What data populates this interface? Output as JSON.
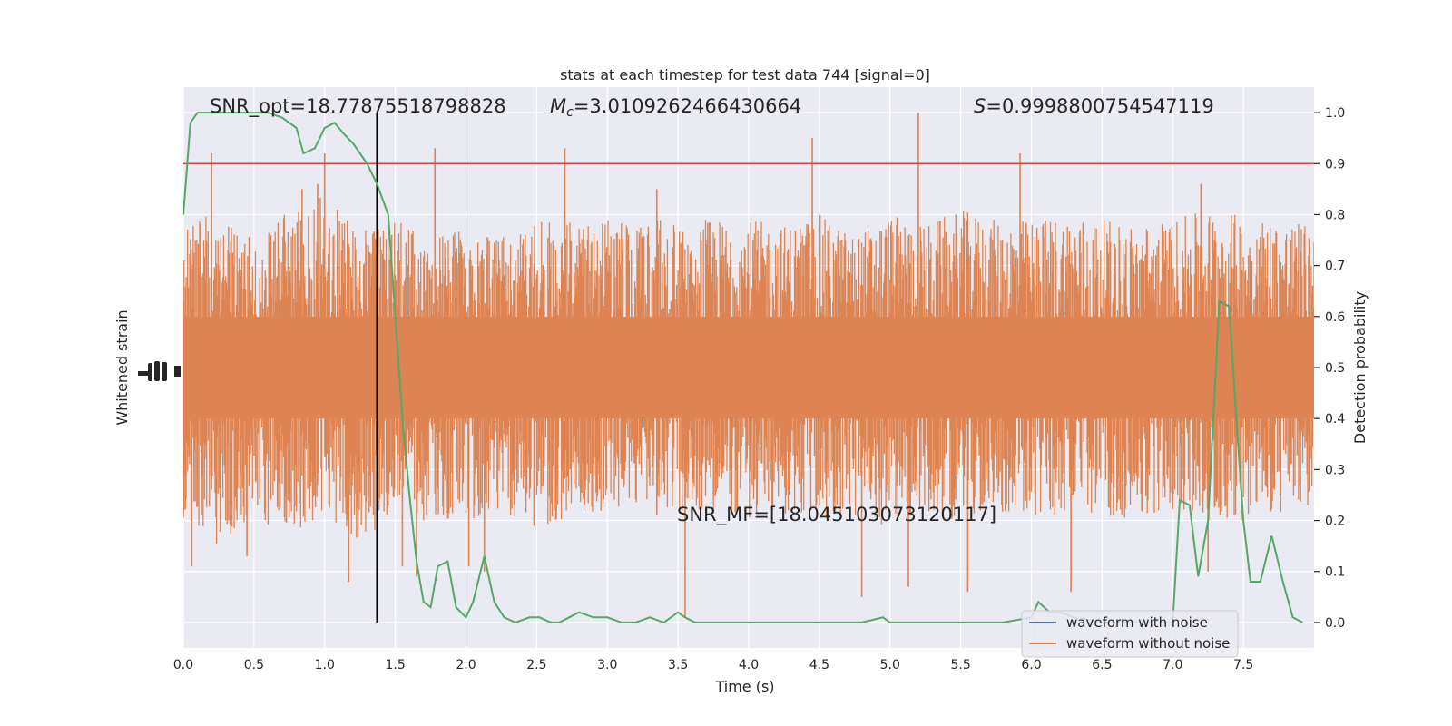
{
  "chart_data": {
    "type": "line",
    "title": "stats at each timestep for test data 744 [signal=0]",
    "xlabel": "Time (s)",
    "ylabel_left": "Whitened strain",
    "ylabel_right": "Detection probability",
    "xlim": [
      0.0,
      8.0
    ],
    "ylim_right": [
      -0.05,
      1.05
    ],
    "x_ticks": [
      "0.0",
      "0.5",
      "1.0",
      "1.5",
      "2.0",
      "2.5",
      "3.0",
      "3.5",
      "4.0",
      "4.5",
      "5.0",
      "5.5",
      "6.0",
      "6.5",
      "7.0",
      "7.5"
    ],
    "x_tick_values": [
      0.0,
      0.5,
      1.0,
      1.5,
      2.0,
      2.5,
      3.0,
      3.5,
      4.0,
      4.5,
      5.0,
      5.5,
      6.0,
      6.5,
      7.0,
      7.5
    ],
    "y_ticks_right": [
      "0.0",
      "0.1",
      "0.2",
      "0.3",
      "0.4",
      "0.5",
      "0.6",
      "0.7",
      "0.8",
      "0.9",
      "1.0"
    ],
    "y_tick_values_right": [
      0.0,
      0.1,
      0.2,
      0.3,
      0.4,
      0.5,
      0.6,
      0.7,
      0.8,
      0.9,
      1.0
    ],
    "annotations": {
      "snr_opt": "SNR_opt=18.77875518798828",
      "mc_symbol": "M",
      "mc_sub": "c",
      "mc_value": "=3.0109262466430664",
      "s_symbol": "S",
      "s_value": "=0.9998800754547119",
      "snr_mf": "SNR_MF=[18.045103073120117]"
    },
    "threshold": 0.9,
    "vertical_line_x": 1.37,
    "legend": {
      "placement": "lower-right",
      "entries": [
        {
          "label": "waveform with noise",
          "color": "#4c72b0"
        },
        {
          "label": "waveform without noise",
          "color": "#dd8452"
        }
      ]
    },
    "colors": {
      "strain": "#dd8452",
      "probability": "#55a868",
      "threshold": "#c44e52",
      "vertical_line": "#000000",
      "axes_bg": "#eaeaf2",
      "grid": "#ffffff"
    },
    "strain_envelope": {
      "x": [
        0.0,
        0.25,
        0.5,
        0.75,
        1.0,
        1.25,
        1.5,
        1.75,
        2.0,
        2.25,
        2.5,
        2.75,
        3.0,
        3.25,
        3.5,
        3.75,
        4.0,
        4.25,
        4.5,
        4.75,
        5.0,
        5.25,
        5.5,
        5.75,
        6.0,
        6.25,
        6.5,
        6.75,
        7.0,
        7.25,
        7.5,
        7.75,
        8.0
      ],
      "upper": [
        0.79,
        0.8,
        0.76,
        0.81,
        0.84,
        0.77,
        0.79,
        0.75,
        0.78,
        0.76,
        0.79,
        0.8,
        0.79,
        0.78,
        0.8,
        0.79,
        0.79,
        0.78,
        0.8,
        0.76,
        0.8,
        0.78,
        0.81,
        0.79,
        0.79,
        0.8,
        0.79,
        0.78,
        0.79,
        0.81,
        0.8,
        0.79,
        0.78
      ],
      "lower": [
        0.2,
        0.15,
        0.2,
        0.18,
        0.2,
        0.15,
        0.22,
        0.18,
        0.2,
        0.22,
        0.18,
        0.2,
        0.22,
        0.23,
        0.21,
        0.22,
        0.2,
        0.21,
        0.2,
        0.2,
        0.19,
        0.21,
        0.2,
        0.22,
        0.2,
        0.21,
        0.21,
        0.2,
        0.22,
        0.2,
        0.2,
        0.21,
        0.22
      ]
    },
    "strain_spikes": [
      {
        "x": 0.2,
        "y": 0.92
      },
      {
        "x": 0.06,
        "y": 0.11
      },
      {
        "x": 0.45,
        "y": 0.13
      },
      {
        "x": 0.84,
        "y": 0.85
      },
      {
        "x": 0.95,
        "y": 0.86
      },
      {
        "x": 1.0,
        "y": 0.92
      },
      {
        "x": 1.09,
        "y": 0.81
      },
      {
        "x": 1.17,
        "y": 0.08
      },
      {
        "x": 1.78,
        "y": 0.93
      },
      {
        "x": 1.55,
        "y": 0.11
      },
      {
        "x": 1.65,
        "y": 0.09
      },
      {
        "x": 2.02,
        "y": 0.11
      },
      {
        "x": 2.13,
        "y": 0.1
      },
      {
        "x": 2.7,
        "y": 0.93
      },
      {
        "x": 3.35,
        "y": 0.85
      },
      {
        "x": 3.55,
        "y": 0.01
      },
      {
        "x": 3.35,
        "y": 0.21
      },
      {
        "x": 4.45,
        "y": 0.95
      },
      {
        "x": 4.8,
        "y": 0.05
      },
      {
        "x": 5.2,
        "y": 1.0
      },
      {
        "x": 5.13,
        "y": 0.07
      },
      {
        "x": 5.55,
        "y": 0.06
      },
      {
        "x": 5.92,
        "y": 0.92
      },
      {
        "x": 6.28,
        "y": 0.06
      },
      {
        "x": 7.2,
        "y": 0.86
      },
      {
        "x": 7.25,
        "y": 0.1
      }
    ],
    "detection_probability": {
      "x": [
        0.0,
        0.05,
        0.1,
        0.2,
        0.3,
        0.4,
        0.5,
        0.6,
        0.7,
        0.8,
        0.85,
        0.93,
        1.0,
        1.07,
        1.13,
        1.2,
        1.3,
        1.37,
        1.45,
        1.5,
        1.55,
        1.6,
        1.65,
        1.7,
        1.75,
        1.8,
        1.87,
        1.93,
        2.0,
        2.05,
        2.13,
        2.2,
        2.27,
        2.35,
        2.45,
        2.52,
        2.6,
        2.66,
        2.73,
        2.8,
        2.9,
        3.0,
        3.1,
        3.2,
        3.3,
        3.4,
        3.5,
        3.55,
        3.62,
        3.7,
        3.8,
        4.0,
        4.5,
        4.8,
        4.95,
        5.0,
        5.2,
        5.4,
        5.6,
        5.8,
        6.0,
        6.05,
        6.13,
        6.2,
        6.3,
        6.5,
        6.8,
        7.0,
        7.05,
        7.12,
        7.18,
        7.25,
        7.33,
        7.4,
        7.45,
        7.5,
        7.55,
        7.62,
        7.7,
        7.78,
        7.85,
        7.92
      ],
      "y": [
        0.8,
        0.98,
        1.0,
        1.0,
        1.0,
        1.0,
        1.0,
        1.0,
        0.99,
        0.97,
        0.92,
        0.93,
        0.97,
        0.98,
        0.96,
        0.94,
        0.9,
        0.86,
        0.8,
        0.6,
        0.4,
        0.25,
        0.12,
        0.04,
        0.03,
        0.11,
        0.12,
        0.03,
        0.01,
        0.04,
        0.13,
        0.04,
        0.01,
        0.0,
        0.01,
        0.01,
        0.0,
        0.0,
        0.01,
        0.02,
        0.01,
        0.01,
        0.0,
        0.0,
        0.01,
        0.0,
        0.02,
        0.01,
        0.0,
        0.0,
        0.0,
        0.0,
        0.0,
        0.0,
        0.01,
        0.0,
        0.0,
        0.0,
        0.0,
        0.0,
        0.01,
        0.04,
        0.02,
        0.02,
        0.01,
        0.0,
        0.0,
        0.0,
        0.24,
        0.23,
        0.09,
        0.2,
        0.63,
        0.62,
        0.4,
        0.2,
        0.08,
        0.08,
        0.17,
        0.08,
        0.01,
        0.0
      ]
    }
  }
}
